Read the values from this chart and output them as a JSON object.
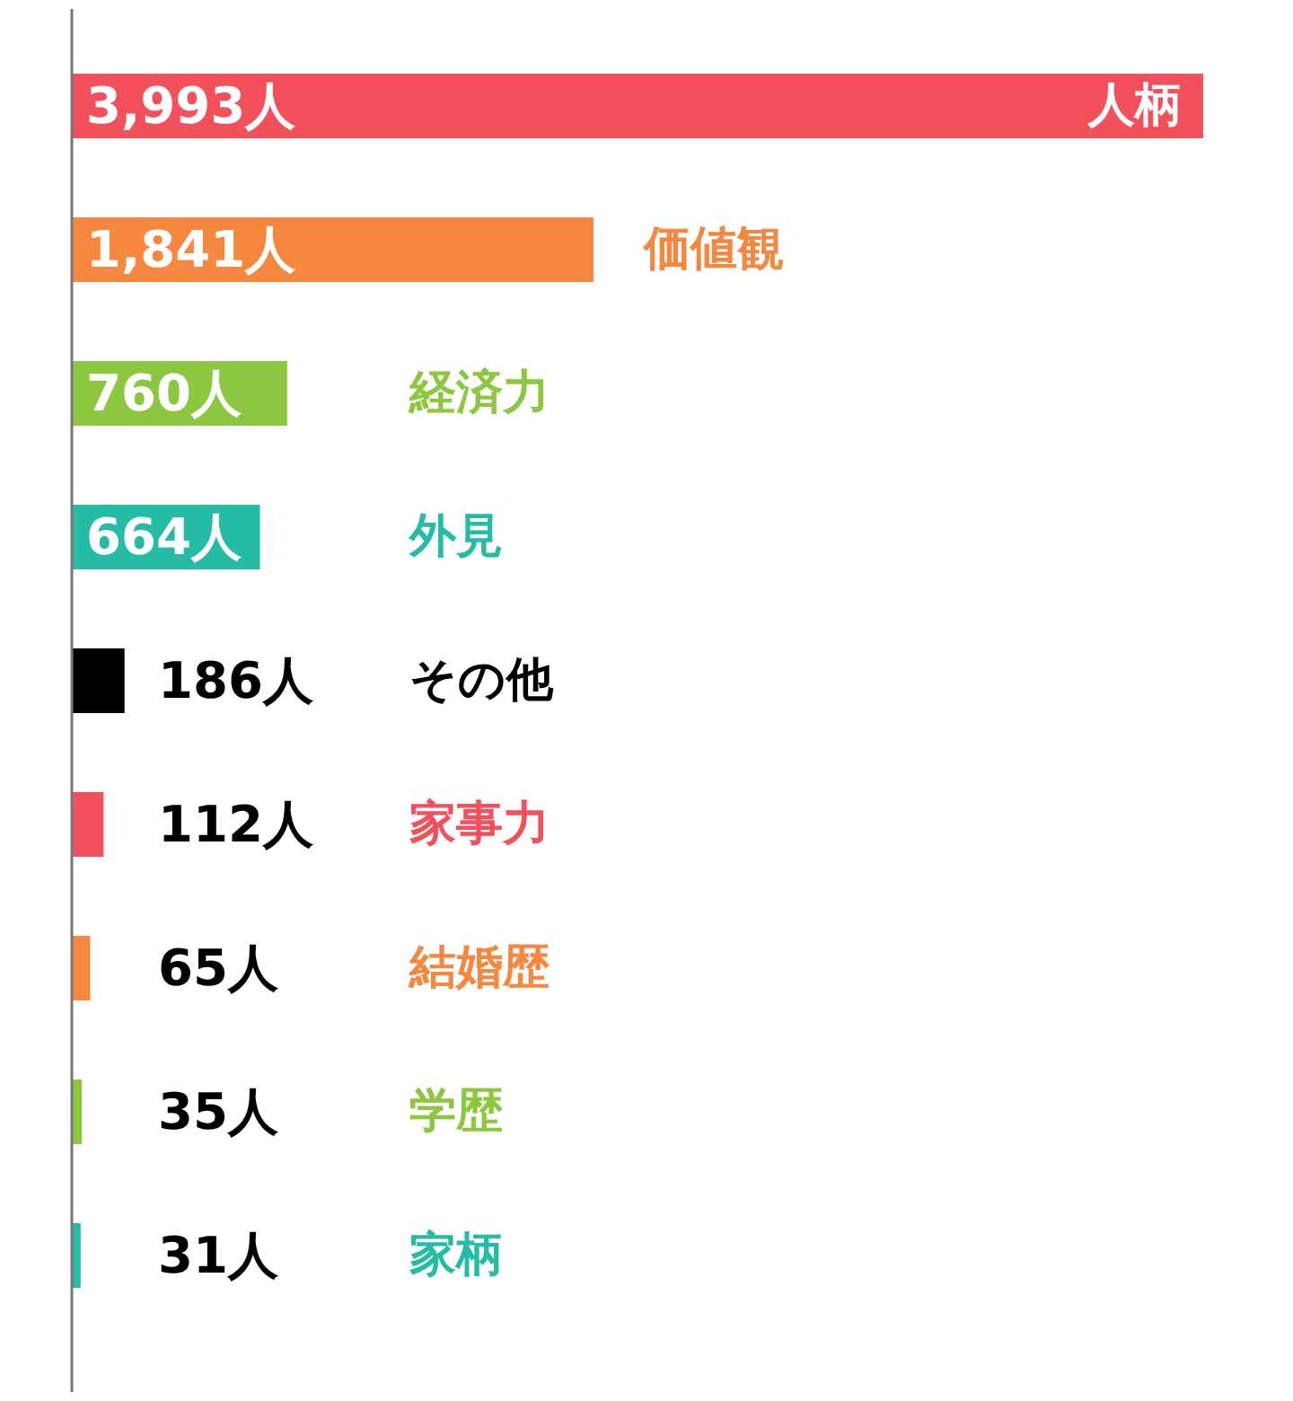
{
  "chart_data": {
    "type": "bar",
    "orientation": "horizontal",
    "categories": [
      "人柄",
      "価値観",
      "経済力",
      "外見",
      "その他",
      "家事力",
      "結婚歴",
      "学歴",
      "家柄"
    ],
    "values": [
      3993,
      1841,
      760,
      664,
      186,
      112,
      65,
      35,
      31
    ],
    "colors": [
      "#f2505a",
      "#f5883e",
      "#8dc63f",
      "#26bba5",
      "#000000",
      "#f2505a",
      "#f5883e",
      "#8dc63f",
      "#26bba5"
    ],
    "value_labels": [
      "3,993人",
      "1,841人",
      "760人",
      "664人",
      "186人",
      "112人",
      "65人",
      "35人",
      "31人"
    ]
  }
}
